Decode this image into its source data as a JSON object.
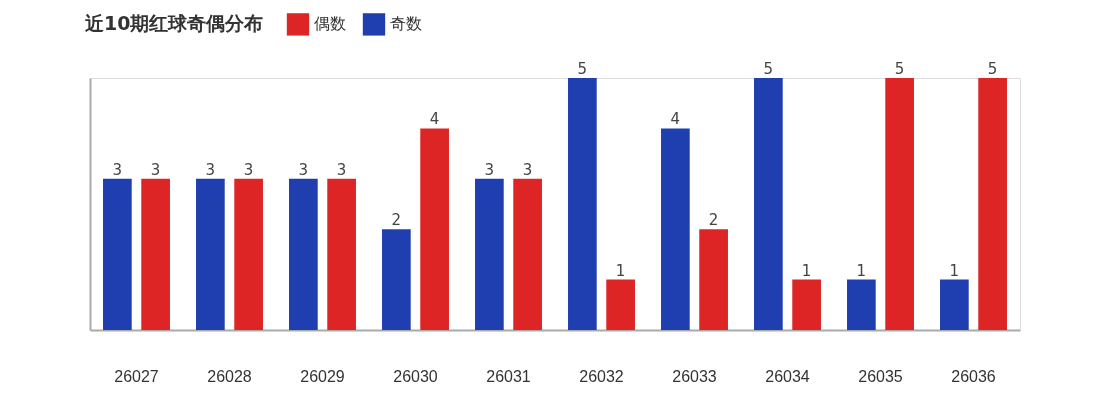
{
  "chart_data": {
    "type": "bar",
    "title": "近10期红球奇偶分布",
    "categories": [
      "26027",
      "26028",
      "26029",
      "26030",
      "26031",
      "26032",
      "26033",
      "26034",
      "26035",
      "26036"
    ],
    "series": [
      {
        "name": "奇数",
        "color": "#1f3fb0",
        "values": [
          3,
          3,
          3,
          2,
          3,
          5,
          4,
          5,
          1,
          1
        ]
      },
      {
        "name": "偶数",
        "color": "#dd2525",
        "values": [
          3,
          3,
          3,
          4,
          3,
          1,
          2,
          1,
          5,
          5
        ]
      }
    ],
    "ylim": [
      0,
      5
    ],
    "data_labels": true,
    "grid": false,
    "legend": "top"
  }
}
